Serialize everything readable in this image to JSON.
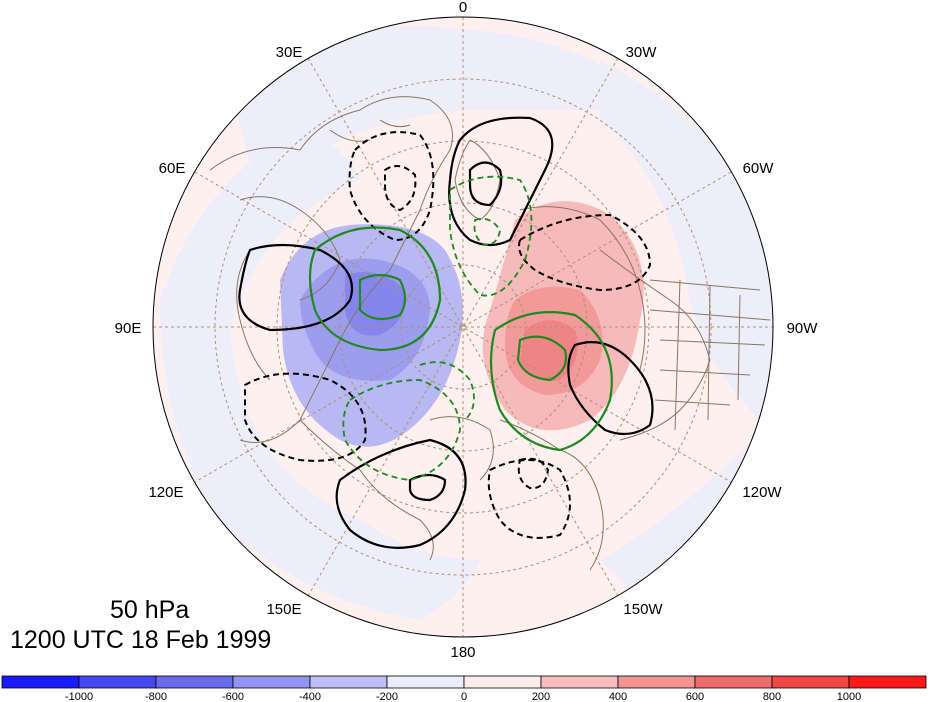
{
  "title": {
    "level": "50 hPa",
    "time": "1200 UTC 18 Feb 1999"
  },
  "longitude_labels": {
    "top": "0",
    "upper_left_1": "30E",
    "upper_left_2": "60E",
    "left": "90E",
    "lower_left_1": "120E",
    "lower_left_2": "150E",
    "bottom": "180",
    "lower_right_2": "150W",
    "lower_right_1": "120W",
    "right": "90W",
    "upper_right_2": "60W",
    "upper_right_1": "30W"
  },
  "colorbar": {
    "labels": [
      "-1000",
      "-800",
      "-600",
      "-400",
      "-200",
      "0",
      "200",
      "400",
      "600",
      "800",
      "1000"
    ],
    "colors": [
      "#1a1aff",
      "#4747f0",
      "#6a6aef",
      "#9494f2",
      "#bdbdf7",
      "#ececfc",
      "#fdecec",
      "#f7bdbd",
      "#f29494",
      "#ef6a6a",
      "#f04747",
      "#ff1a1a"
    ]
  },
  "legend_colors": {
    "shading_negative": "#b8b8f2",
    "shading_positive": "#f2b8b8",
    "contour_black": "#000000",
    "contour_green": "#1e8a1e",
    "coastline": "#8b7560",
    "graticule": "#b09070"
  }
}
